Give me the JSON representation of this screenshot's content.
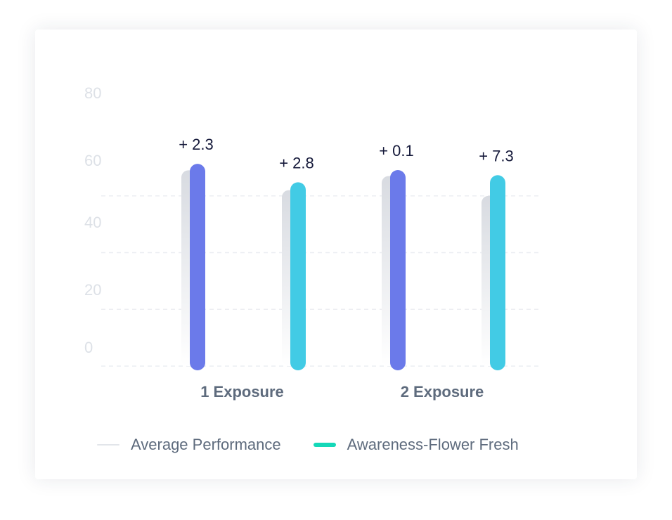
{
  "chart_data": {
    "type": "bar",
    "categories": [
      "1 Exposure",
      "2 Exposure"
    ],
    "yticks": [
      "0",
      "20",
      "40",
      "60",
      "80"
    ],
    "ylim": [
      0,
      80
    ],
    "grid": true,
    "legend_position": "bottom",
    "series": [
      {
        "name": "Average Performance",
        "kind": "reference",
        "values": [
          69,
          67
        ]
      },
      {
        "name": "Awareness-Flower Fresh",
        "values": [
          71.3,
          69.1
        ],
        "diff_labels": [
          "+ 2.3",
          "+ 0.1"
        ],
        "color": "#6b7aea"
      },
      {
        "values": [
          64.8,
          67.3
        ],
        "diff_labels": [
          "+ 2.8",
          "+ 7.3"
        ],
        "color": "#42cbe5"
      }
    ]
  },
  "legend": [
    {
      "label": "Average Performance",
      "color": "#e2e5ea"
    },
    {
      "label": "Awareness-Flower Fresh",
      "color": "#14d8b8"
    }
  ]
}
